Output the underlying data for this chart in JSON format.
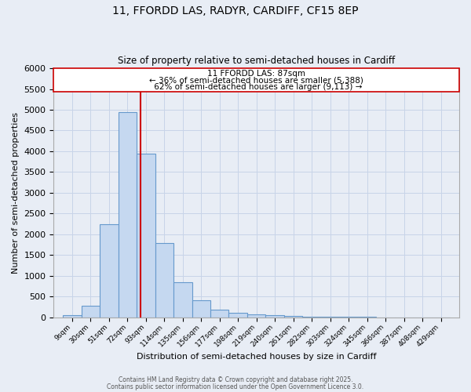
{
  "title1": "11, FFORDD LAS, RADYR, CARDIFF, CF15 8EP",
  "title2": "Size of property relative to semi-detached houses in Cardiff",
  "xlabel": "Distribution of semi-detached houses by size in Cardiff",
  "ylabel": "Number of semi-detached properties",
  "bar_labels": [
    "9sqm",
    "30sqm",
    "51sqm",
    "72sqm",
    "93sqm",
    "114sqm",
    "135sqm",
    "156sqm",
    "177sqm",
    "198sqm",
    "219sqm",
    "240sqm",
    "261sqm",
    "282sqm",
    "303sqm",
    "324sqm",
    "345sqm",
    "366sqm",
    "387sqm",
    "408sqm",
    "429sqm"
  ],
  "bar_values": [
    50,
    270,
    2250,
    4950,
    3950,
    1780,
    840,
    410,
    175,
    110,
    70,
    50,
    30,
    15,
    10,
    8,
    5,
    3,
    2,
    1,
    1
  ],
  "bar_color": "#c5d8f0",
  "bar_edge_color": "#6699cc",
  "property_value": 87,
  "property_label": "11 FFORDD LAS: 87sqm",
  "pct_smaller": 36,
  "pct_larger": 62,
  "n_smaller": 5388,
  "n_larger": 9113,
  "vline_x": 87,
  "vline_color": "#cc0000",
  "annotation_box_color": "#ffffff",
  "annotation_box_edge": "#cc0000",
  "ylim": [
    0,
    6000
  ],
  "yticks": [
    0,
    500,
    1000,
    1500,
    2000,
    2500,
    3000,
    3500,
    4000,
    4500,
    5000,
    5500,
    6000
  ],
  "grid_color": "#c8d4e8",
  "bg_color": "#e8edf5",
  "plot_bg_color": "#e8edf5",
  "footer1": "Contains HM Land Registry data © Crown copyright and database right 2025.",
  "footer2": "Contains public sector information licensed under the Open Government Licence 3.0."
}
